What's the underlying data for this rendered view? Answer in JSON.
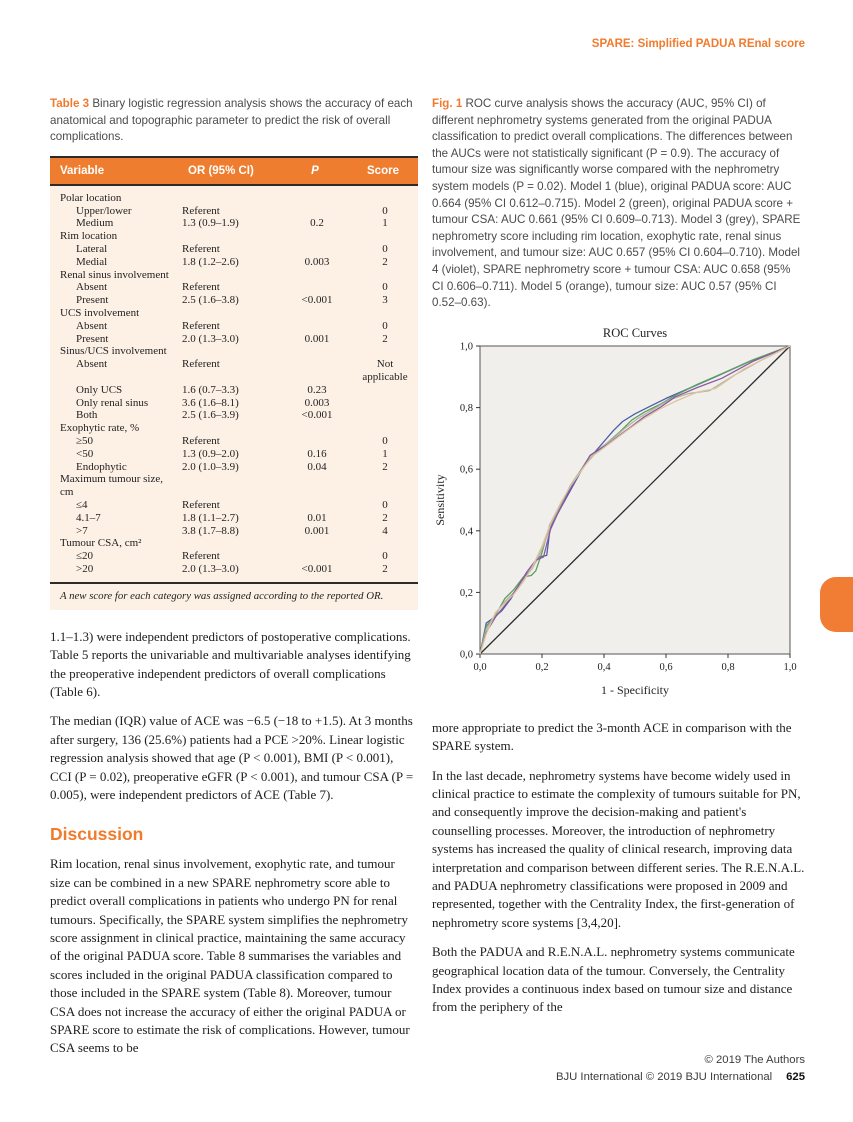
{
  "running_head": "SPARE: Simplified PADUA REnal score",
  "accent_color": "#f07b2d",
  "table3": {
    "caption_label": "Table 3",
    "caption_text": " Binary logistic regression analysis shows the accuracy of each anatomical and topographic parameter to predict the risk of overall complications.",
    "headers": [
      "Variable",
      "OR (95% CI)",
      "P",
      "Score"
    ],
    "rows": [
      {
        "label": "Polar location",
        "group": true,
        "or": "",
        "p": "",
        "score": ""
      },
      {
        "label": "Upper/lower",
        "group": false,
        "or": "Referent",
        "p": "",
        "score": "0"
      },
      {
        "label": "Medium",
        "group": false,
        "or": "1.3 (0.9–1.9)",
        "p": "0.2",
        "score": "1"
      },
      {
        "label": "Rim location",
        "group": true,
        "or": "",
        "p": "",
        "score": ""
      },
      {
        "label": "Lateral",
        "group": false,
        "or": "Referent",
        "p": "",
        "score": "0"
      },
      {
        "label": "Medial",
        "group": false,
        "or": "1.8 (1.2–2.6)",
        "p": "0.003",
        "score": "2"
      },
      {
        "label": "Renal sinus involvement",
        "group": true,
        "or": "",
        "p": "",
        "score": ""
      },
      {
        "label": "Absent",
        "group": false,
        "or": "Referent",
        "p": "",
        "score": "0"
      },
      {
        "label": "Present",
        "group": false,
        "or": "2.5 (1.6–3.8)",
        "p": "<0.001",
        "score": "3"
      },
      {
        "label": "UCS involvement",
        "group": true,
        "or": "",
        "p": "",
        "score": ""
      },
      {
        "label": "Absent",
        "group": false,
        "or": "Referent",
        "p": "",
        "score": "0"
      },
      {
        "label": "Present",
        "group": false,
        "or": "2.0 (1.3–3.0)",
        "p": "0.001",
        "score": "2"
      },
      {
        "label": "Sinus/UCS involvement",
        "group": true,
        "or": "",
        "p": "",
        "score": ""
      },
      {
        "label": "Absent",
        "group": false,
        "or": "Referent",
        "p": "",
        "score": "Not applicable"
      },
      {
        "label": "Only UCS",
        "group": false,
        "or": "1.6 (0.7–3.3)",
        "p": "0.23",
        "score": ""
      },
      {
        "label": "Only renal sinus",
        "group": false,
        "or": "3.6 (1.6–8.1)",
        "p": "0.003",
        "score": ""
      },
      {
        "label": "Both",
        "group": false,
        "or": "2.5 (1.6–3.9)",
        "p": "<0.001",
        "score": ""
      },
      {
        "label": "Exophytic rate, %",
        "group": true,
        "or": "",
        "p": "",
        "score": ""
      },
      {
        "label": "≥50",
        "group": false,
        "or": "Referent",
        "p": "",
        "score": "0"
      },
      {
        "label": "<50",
        "group": false,
        "or": "1.3 (0.9–2.0)",
        "p": "0.16",
        "score": "1"
      },
      {
        "label": "Endophytic",
        "group": false,
        "or": "2.0 (1.0–3.9)",
        "p": "0.04",
        "score": "2"
      },
      {
        "label": "Maximum tumour size, cm",
        "group": true,
        "or": "",
        "p": "",
        "score": ""
      },
      {
        "label": "≤4",
        "group": false,
        "or": "Referent",
        "p": "",
        "score": "0"
      },
      {
        "label": "4.1–7",
        "group": false,
        "or": "1.8 (1.1–2.7)",
        "p": "0.01",
        "score": "2"
      },
      {
        "label": ">7",
        "group": false,
        "or": "3.8 (1.7–8.8)",
        "p": "0.001",
        "score": "4"
      },
      {
        "label": "Tumour CSA, cm²",
        "group": true,
        "or": "",
        "p": "",
        "score": ""
      },
      {
        "label": "≤20",
        "group": false,
        "or": "Referent",
        "p": "",
        "score": "0"
      },
      {
        "label": ">20",
        "group": false,
        "or": "2.0 (1.3–3.0)",
        "p": "<0.001",
        "score": "2"
      }
    ],
    "footnote": "A new score for each category was assigned according to the reported OR."
  },
  "left_column": {
    "paragraph1": "1.1–1.3) were independent predictors of postoperative complications. Table 5 reports the univariable and multivariable analyses identifying the preoperative independent predictors of overall complications (Table 6).",
    "paragraph2": "The median (IQR) value of ACE was −6.5 (−18 to +1.5). At 3 months after surgery, 136 (25.6%) patients had a PCE >20%. Linear logistic regression analysis showed that age (P < 0.001), BMI (P < 0.001), CCI (P = 0.02), preoperative eGFR (P < 0.001), and tumour CSA (P = 0.005), were independent predictors of ACE (Table 7).",
    "discussion_title": "Discussion",
    "paragraph3": "Rim location, renal sinus involvement, exophytic rate, and tumour size can be combined in a new SPARE nephrometry score able to predict overall complications in patients who undergo PN for renal tumours. Specifically, the SPARE system simplifies the nephrometry score assignment in clinical practice, maintaining the same accuracy of the original PADUA score. Table 8 summarises the variables and scores included in the original PADUA classification compared to those included in the SPARE system (Table 8). Moreover, tumour CSA does not increase the accuracy of either the original PADUA or SPARE score to estimate the risk of complications. However, tumour CSA seems to be"
  },
  "figure1": {
    "caption_label": "Fig. 1",
    "caption_text": " ROC curve analysis shows the accuracy (AUC, 95% CI) of different nephrometry systems generated from the original PADUA classification to predict overall complications. The differences between the AUCs were not statistically significant (P = 0.9). The accuracy of tumour size was significantly worse compared with the nephrometry system models (P = 0.02). Model 1 (blue), original PADUA score: AUC 0.664 (95% CI 0.612–0.715). Model 2 (green), original PADUA score + tumour CSA: AUC 0.661 (95% CI 0.609–0.713). Model 3 (grey), SPARE nephrometry score including rim location, exophytic rate, renal sinus involvement, and tumour size: AUC 0.657 (95% CI 0.604–0.710). Model 4 (violet), SPARE nephrometry score + tumour CSA: AUC 0.658 (95% CI 0.606–0.711). Model 5 (orange), tumour size: AUC 0.57 (95% CI 0.52–0.63)."
  },
  "chart_data": {
    "type": "line",
    "title": "ROC Curves",
    "xlabel": "1 - Specificity",
    "ylabel": "Sensitivity",
    "xlim": [
      0,
      1
    ],
    "ylim": [
      0,
      1
    ],
    "x_ticks": [
      "0,0",
      "0,2",
      "0,4",
      "0,6",
      "0,8",
      "1,0"
    ],
    "y_ticks": [
      "0,0",
      "0,2",
      "0,4",
      "0,6",
      "0,8",
      "1,0"
    ],
    "grid": false,
    "legend": "none (models identified by colour in caption)",
    "plot_bg": "#f1efec",
    "reference_line": {
      "from": [
        0,
        0
      ],
      "to": [
        1,
        1
      ],
      "color": "#2b2b2b"
    },
    "series": [
      {
        "name": "Model 1: original PADUA score (blue), AUC 0.664",
        "color": "#4a5da8",
        "points": [
          [
            0,
            0
          ],
          [
            0.02,
            0.1
          ],
          [
            0.04,
            0.115
          ],
          [
            0.07,
            0.14
          ],
          [
            0.1,
            0.18
          ],
          [
            0.13,
            0.23
          ],
          [
            0.16,
            0.27
          ],
          [
            0.19,
            0.315
          ],
          [
            0.215,
            0.32
          ],
          [
            0.225,
            0.4
          ],
          [
            0.25,
            0.455
          ],
          [
            0.28,
            0.51
          ],
          [
            0.31,
            0.565
          ],
          [
            0.34,
            0.62
          ],
          [
            0.37,
            0.655
          ],
          [
            0.4,
            0.69
          ],
          [
            0.43,
            0.725
          ],
          [
            0.46,
            0.755
          ],
          [
            0.5,
            0.78
          ],
          [
            0.55,
            0.805
          ],
          [
            0.6,
            0.83
          ],
          [
            0.68,
            0.865
          ],
          [
            0.76,
            0.9
          ],
          [
            0.87,
            0.95
          ],
          [
            1,
            1
          ]
        ]
      },
      {
        "name": "Model 2: original PADUA score + tumour CSA (green), AUC 0.661",
        "color": "#5aa05e",
        "points": [
          [
            0,
            0
          ],
          [
            0.02,
            0.09
          ],
          [
            0.05,
            0.125
          ],
          [
            0.08,
            0.18
          ],
          [
            0.11,
            0.21
          ],
          [
            0.14,
            0.25
          ],
          [
            0.165,
            0.255
          ],
          [
            0.18,
            0.27
          ],
          [
            0.2,
            0.33
          ],
          [
            0.225,
            0.42
          ],
          [
            0.25,
            0.465
          ],
          [
            0.28,
            0.52
          ],
          [
            0.31,
            0.57
          ],
          [
            0.34,
            0.615
          ],
          [
            0.37,
            0.65
          ],
          [
            0.41,
            0.685
          ],
          [
            0.45,
            0.72
          ],
          [
            0.49,
            0.76
          ],
          [
            0.53,
            0.785
          ],
          [
            0.58,
            0.81
          ],
          [
            0.63,
            0.84
          ],
          [
            0.7,
            0.875
          ],
          [
            0.78,
            0.91
          ],
          [
            0.88,
            0.955
          ],
          [
            1,
            1
          ]
        ]
      },
      {
        "name": "Model 3: SPARE nephrometry score (grey), AUC 0.657",
        "color": "#b7b2a4",
        "points": [
          [
            0,
            0
          ],
          [
            0.02,
            0.08
          ],
          [
            0.05,
            0.13
          ],
          [
            0.08,
            0.17
          ],
          [
            0.11,
            0.2
          ],
          [
            0.14,
            0.24
          ],
          [
            0.17,
            0.28
          ],
          [
            0.2,
            0.34
          ],
          [
            0.23,
            0.42
          ],
          [
            0.26,
            0.48
          ],
          [
            0.29,
            0.545
          ],
          [
            0.32,
            0.59
          ],
          [
            0.35,
            0.635
          ],
          [
            0.39,
            0.67
          ],
          [
            0.43,
            0.7
          ],
          [
            0.47,
            0.735
          ],
          [
            0.51,
            0.765
          ],
          [
            0.56,
            0.795
          ],
          [
            0.61,
            0.825
          ],
          [
            0.67,
            0.845
          ],
          [
            0.74,
            0.855
          ],
          [
            0.82,
            0.905
          ],
          [
            0.9,
            0.95
          ],
          [
            1,
            1
          ]
        ]
      },
      {
        "name": "Model 4: SPARE nephrometry score + tumour CSA (violet), AUC 0.658",
        "color": "#8a5aa0",
        "points": [
          [
            0,
            0
          ],
          [
            0.02,
            0.07
          ],
          [
            0.05,
            0.12
          ],
          [
            0.09,
            0.17
          ],
          [
            0.12,
            0.215
          ],
          [
            0.15,
            0.265
          ],
          [
            0.18,
            0.305
          ],
          [
            0.205,
            0.315
          ],
          [
            0.23,
            0.415
          ],
          [
            0.26,
            0.475
          ],
          [
            0.29,
            0.535
          ],
          [
            0.32,
            0.585
          ],
          [
            0.355,
            0.645
          ],
          [
            0.37,
            0.655
          ],
          [
            0.41,
            0.68
          ],
          [
            0.45,
            0.71
          ],
          [
            0.49,
            0.74
          ],
          [
            0.53,
            0.77
          ],
          [
            0.58,
            0.8
          ],
          [
            0.63,
            0.835
          ],
          [
            0.7,
            0.865
          ],
          [
            0.78,
            0.895
          ],
          [
            0.88,
            0.95
          ],
          [
            1,
            1
          ]
        ]
      },
      {
        "name": "Model 5: tumour size (orange), AUC 0.57",
        "color": "#dcc59c",
        "points": [
          [
            0,
            0
          ],
          [
            0.02,
            0.065
          ],
          [
            0.05,
            0.135
          ],
          [
            0.08,
            0.165
          ],
          [
            0.11,
            0.195
          ],
          [
            0.14,
            0.235
          ],
          [
            0.17,
            0.285
          ],
          [
            0.2,
            0.35
          ],
          [
            0.23,
            0.43
          ],
          [
            0.26,
            0.49
          ],
          [
            0.295,
            0.55
          ],
          [
            0.33,
            0.6
          ],
          [
            0.36,
            0.64
          ],
          [
            0.4,
            0.67
          ],
          [
            0.44,
            0.7
          ],
          [
            0.48,
            0.73
          ],
          [
            0.53,
            0.765
          ],
          [
            0.58,
            0.795
          ],
          [
            0.63,
            0.82
          ],
          [
            0.7,
            0.85
          ],
          [
            0.76,
            0.862
          ],
          [
            0.85,
            0.925
          ],
          [
            1,
            1
          ]
        ]
      }
    ]
  },
  "right_column": {
    "paragraph1": "more appropriate to predict the 3-month ACE in comparison with the SPARE system.",
    "paragraph2": "In the last decade, nephrometry systems have become widely used in clinical practice to estimate the complexity of tumours suitable for PN, and consequently improve the decision-making and patient's counselling processes. Moreover, the introduction of nephrometry systems has increased the quality of clinical research, improving data interpretation and comparison between different series. The R.E.N.A.L. and PADUA nephrometry classifications were proposed in 2009 and represented, together with the Centrality Index, the first-generation of nephrometry score systems [3,4,20].",
    "paragraph3": "Both the PADUA and R.E.N.A.L. nephrometry systems communicate geographical location data of the tumour. Conversely, the Centrality Index provides a continuous index based on tumour size and distance from the periphery of the"
  },
  "footer": {
    "line1": "© 2019 The Authors",
    "line2": "BJU International © 2019 BJU International",
    "page_number": "625"
  }
}
